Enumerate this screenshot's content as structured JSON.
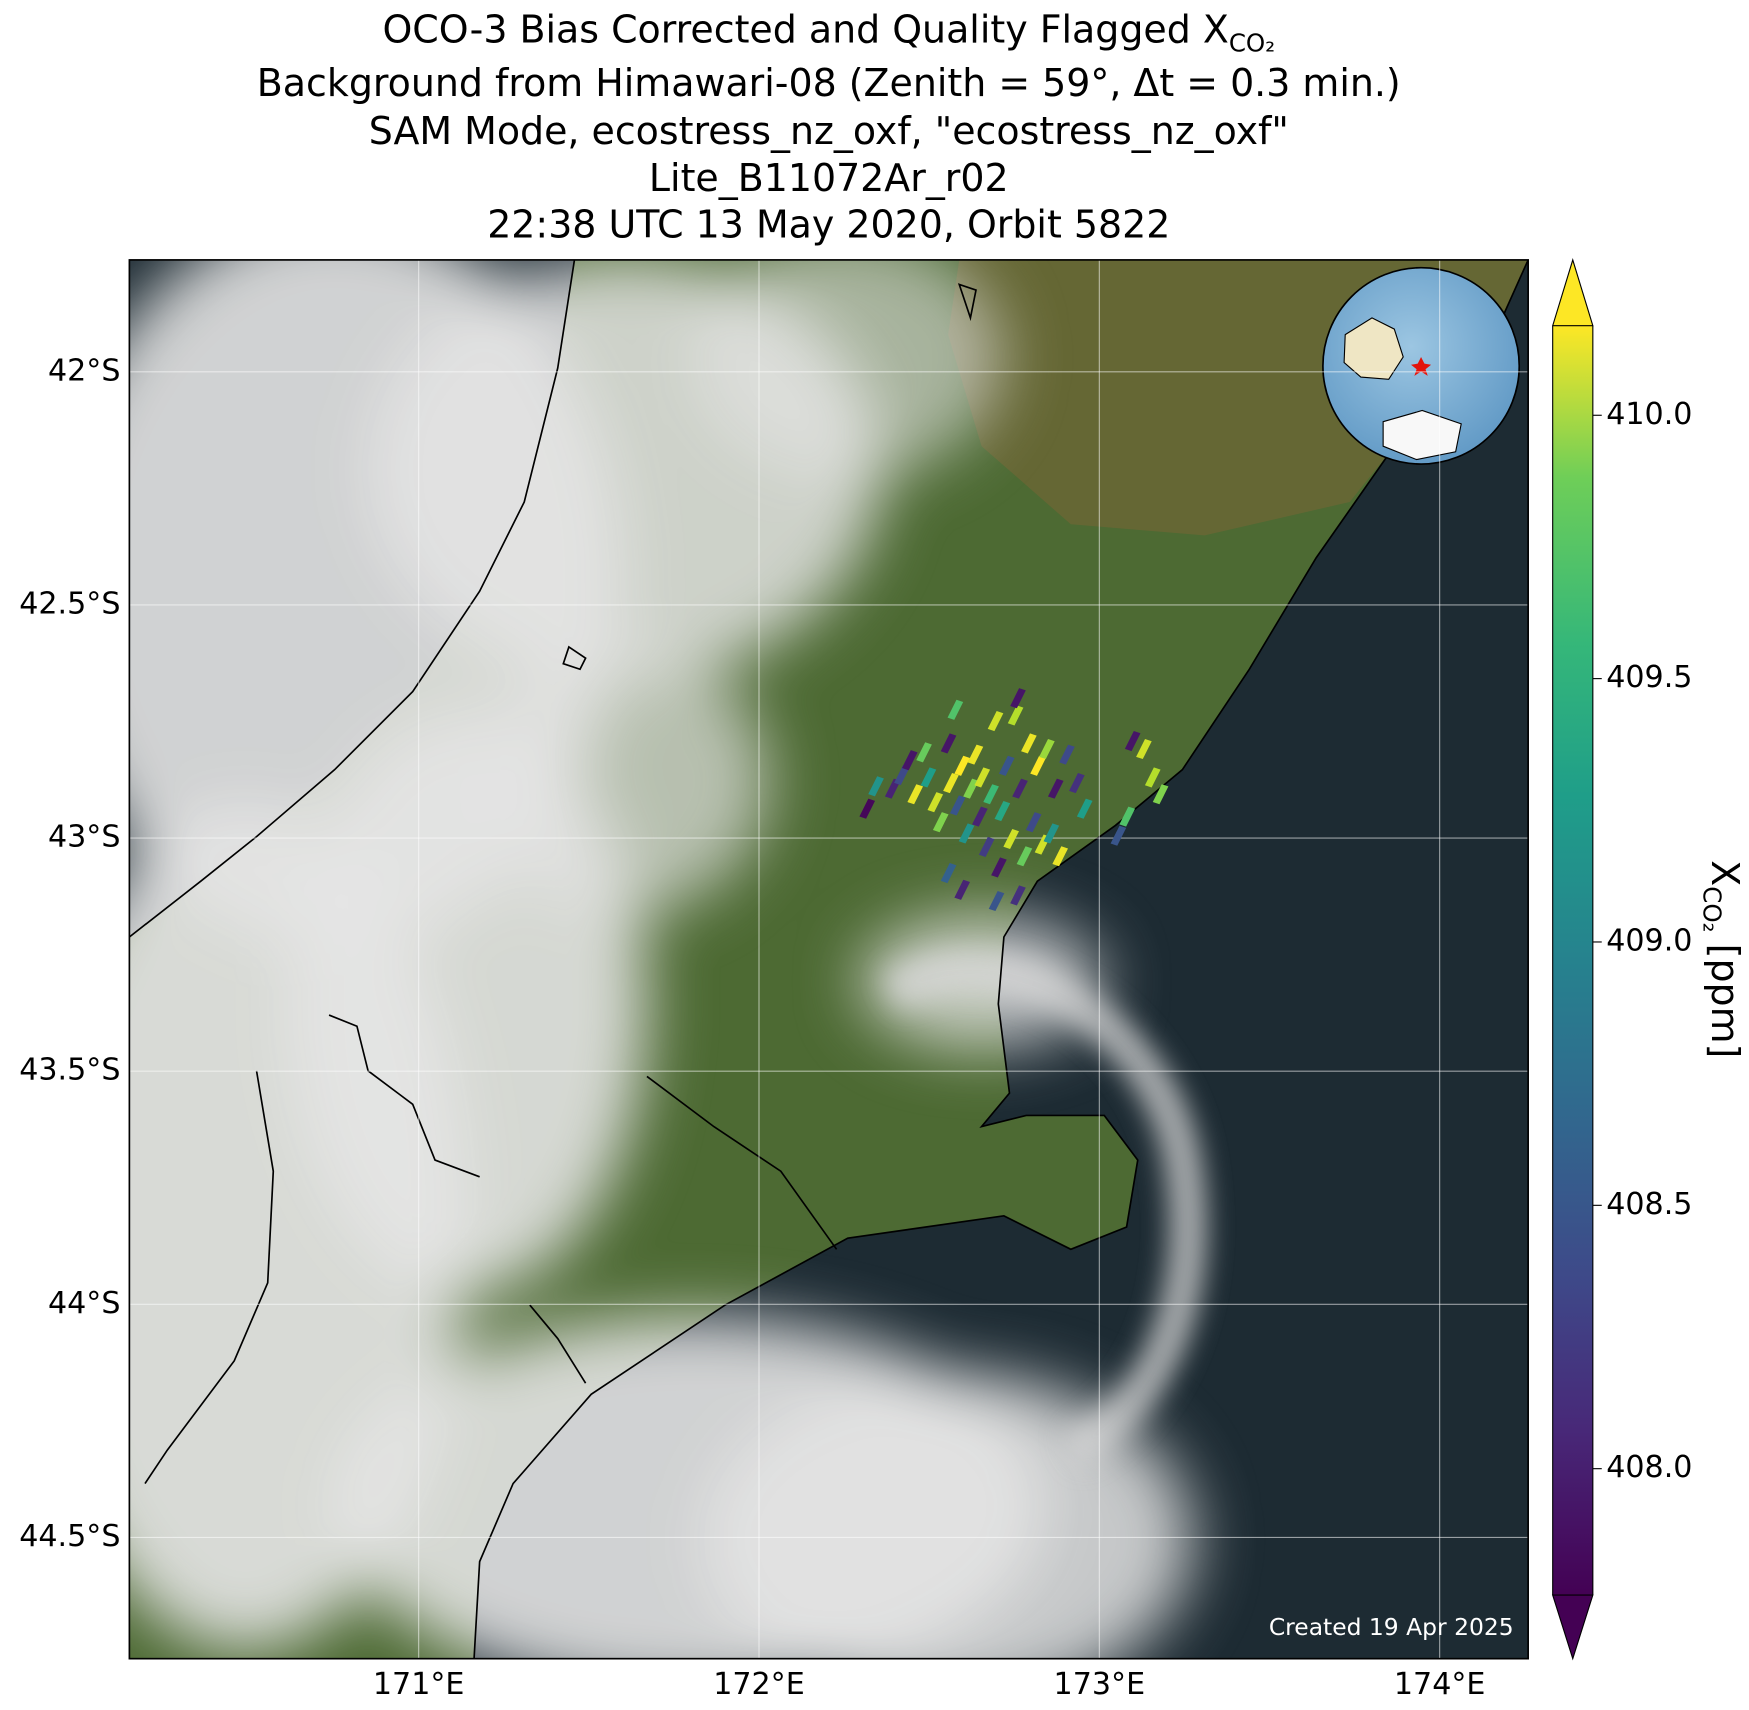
{
  "chart_data": {
    "type": "scatter",
    "title": [
      "OCO-3 Bias Corrected and Quality Flagged X",
      "Background from Himawari-08 (Zenith = 59°, Δt =  0.3 min.)",
      "SAM Mode, ecostress_nz_oxf, \"ecostress_nz_oxf\"",
      "Lite_B11072Ar_r02",
      "22:38 UTC 13 May 2020, Orbit 5822"
    ],
    "title_subscript": "CO₂",
    "annotation": "Created 19 Apr 2025",
    "xlim": [
      170.15,
      174.26
    ],
    "ylim": [
      -44.76,
      -41.76
    ],
    "xticks": [
      {
        "value": 171,
        "label": "171°E"
      },
      {
        "value": 172,
        "label": "172°E"
      },
      {
        "value": 173,
        "label": "173°E"
      },
      {
        "value": 174,
        "label": "174°E"
      }
    ],
    "yticks": [
      {
        "value": -42,
        "label": "42°S"
      },
      {
        "value": -42.5,
        "label": "42.5°S"
      },
      {
        "value": -43,
        "label": "43°S"
      },
      {
        "value": -43.5,
        "label": "43.5°S"
      },
      {
        "value": -44,
        "label": "44°S"
      },
      {
        "value": -44.5,
        "label": "44.5°S"
      }
    ],
    "grid": true,
    "colormap": "viridis",
    "colorbar": {
      "label": "X",
      "label_subscript": "CO₂",
      "label_unit": "[ppm]",
      "clim": [
        407.76,
        410.17
      ],
      "ticks": [
        {
          "value": 408,
          "label": "408.0"
        },
        408.5,
        {
          "value": 409,
          "label": "409.0"
        },
        409.5,
        {
          "value": 410,
          "label": "410.0"
        }
      ]
    },
    "x": [
      172.318,
      172.344,
      172.393,
      172.42,
      172.443,
      172.459,
      172.485,
      172.498,
      172.518,
      172.534,
      172.557,
      172.564,
      172.577,
      172.584,
      172.597,
      172.61,
      172.623,
      172.636,
      172.649,
      172.656,
      172.669,
      172.682,
      172.695,
      172.705,
      172.715,
      172.728,
      172.741,
      172.754,
      172.767,
      172.78,
      172.793,
      172.807,
      172.82,
      172.833,
      172.846,
      172.859,
      172.872,
      172.885,
      172.905,
      172.934,
      172.957,
      173.056,
      173.082,
      173.098,
      173.131,
      173.157,
      173.18,
      172.557,
      172.597,
      172.698,
      172.761,
      172.761
    ],
    "y": [
      -42.937,
      -42.889,
      -42.894,
      -42.865,
      -42.833,
      -42.906,
      -42.816,
      -42.87,
      -42.923,
      -42.966,
      -42.797,
      -42.882,
      -42.725,
      -42.93,
      -42.845,
      -42.99,
      -42.894,
      -42.821,
      -42.954,
      -42.87,
      -43.019,
      -42.906,
      -42.749,
      -43.063,
      -42.942,
      -42.845,
      -43.002,
      -42.737,
      -42.894,
      -43.039,
      -42.797,
      -42.966,
      -42.845,
      -43.014,
      -42.809,
      -42.99,
      -42.894,
      -43.039,
      -42.821,
      -42.882,
      -42.937,
      -42.995,
      -42.954,
      -42.792,
      -42.809,
      -42.87,
      -42.906,
      -43.075,
      -43.111,
      -43.135,
      -43.123,
      -42.7
    ],
    "values": [
      407.8,
      409.0,
      408.0,
      408.3,
      407.9,
      410.1,
      409.6,
      409.1,
      410.0,
      409.7,
      407.9,
      410.1,
      409.5,
      408.4,
      410.2,
      409.0,
      409.7,
      410.1,
      408.0,
      410.0,
      408.2,
      409.4,
      410.0,
      407.9,
      409.2,
      408.4,
      410.0,
      409.9,
      408.0,
      409.6,
      410.1,
      408.3,
      410.2,
      410.0,
      409.8,
      409.0,
      407.9,
      410.1,
      408.3,
      408.1,
      409.1,
      408.4,
      409.5,
      407.9,
      410.0,
      409.9,
      409.7,
      408.5,
      408.0,
      408.4,
      408.1,
      407.9
    ]
  }
}
